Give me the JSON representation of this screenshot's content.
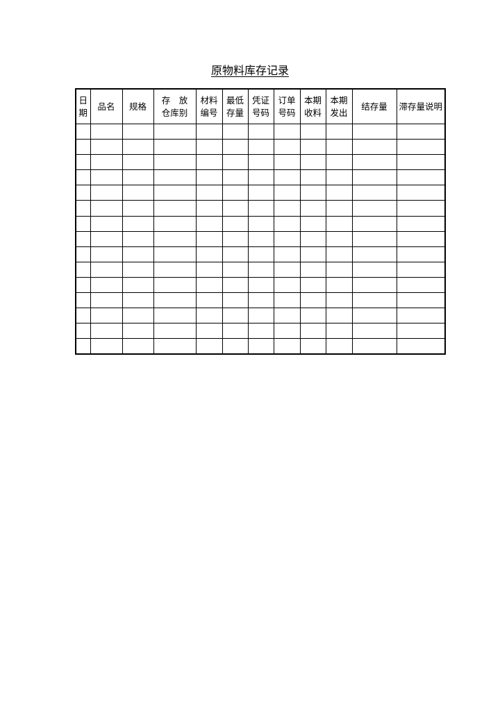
{
  "title": "原物料库存记录",
  "columns": [
    [
      "日",
      "期"
    ],
    [
      "品名"
    ],
    [
      "规格"
    ],
    [
      "存　放",
      "仓库别"
    ],
    [
      "材料",
      "编号"
    ],
    [
      "最低",
      "存量"
    ],
    [
      "凭证",
      "号码"
    ],
    [
      "订单",
      "号码"
    ],
    [
      "本期",
      "收料"
    ],
    [
      "本期",
      "发出"
    ],
    [
      "结存量"
    ],
    [
      "滞存量说明"
    ]
  ],
  "empty_row_count": 15
}
